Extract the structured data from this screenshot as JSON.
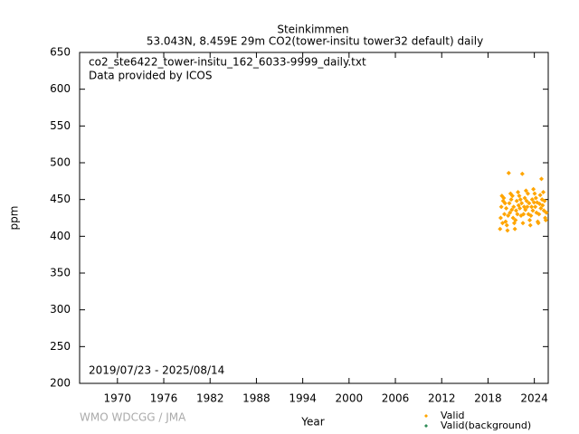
{
  "chart_data": {
    "type": "scatter",
    "title": "Steinkimmen",
    "subtitle": "53.043N, 8.459E 29m    CO2(tower-insitu tower32 default) daily",
    "annotations": [
      "co2_ste6422_tower-insitu_162_6033-9999_daily.txt",
      "Data provided by ICOS",
      "2019/07/23 - 2025/08/14"
    ],
    "credit": "WMO WDCGG / JMA",
    "x_label": "Year",
    "y_label": "ppm",
    "xlim": [
      1965.1,
      2025.8
    ],
    "ylim": [
      200,
      650
    ],
    "xticks": [
      1970,
      1976,
      1982,
      1988,
      1994,
      2000,
      2006,
      2012,
      2018,
      2024
    ],
    "yticks": [
      200,
      250,
      300,
      350,
      400,
      450,
      500,
      550,
      600,
      650
    ],
    "series": [
      {
        "name": "Valid",
        "color": "#ffa500",
        "x": [
          2019.56,
          2019.64,
          2019.72,
          2019.8,
          2019.88,
          2019.96,
          2020.04,
          2020.12,
          2020.2,
          2020.28,
          2020.36,
          2020.44,
          2020.52,
          2020.6,
          2020.68,
          2020.76,
          2020.84,
          2020.92,
          2021.0,
          2021.08,
          2021.16,
          2021.24,
          2021.32,
          2021.4,
          2021.48,
          2021.56,
          2021.64,
          2021.72,
          2021.8,
          2021.88,
          2021.96,
          2022.04,
          2022.12,
          2022.2,
          2022.28,
          2022.36,
          2022.44,
          2022.52,
          2022.6,
          2022.68,
          2022.76,
          2022.84,
          2022.92,
          2023.0,
          2023.08,
          2023.16,
          2023.24,
          2023.32,
          2023.4,
          2023.48,
          2023.56,
          2023.64,
          2023.72,
          2023.8,
          2023.88,
          2023.96,
          2024.04,
          2024.12,
          2024.2,
          2024.28,
          2024.36,
          2024.44,
          2024.52,
          2024.6,
          2024.68,
          2024.76,
          2024.84,
          2024.92,
          2025.0,
          2025.08,
          2025.16,
          2025.24,
          2025.32,
          2025.4,
          2025.48,
          2025.56
        ],
        "values": [
          410,
          425,
          440,
          455,
          418,
          448,
          452,
          430,
          445,
          420,
          438,
          415,
          408,
          428,
          486,
          445,
          432,
          458,
          450,
          436,
          455,
          425,
          440,
          418,
          410,
          422,
          435,
          448,
          430,
          460,
          442,
          455,
          438,
          450,
          428,
          445,
          485,
          418,
          430,
          440,
          452,
          436,
          462,
          448,
          440,
          458,
          430,
          445,
          422,
          415,
          428,
          440,
          450,
          435,
          464,
          446,
          458,
          440,
          452,
          432,
          446,
          420,
          418,
          430,
          444,
          456,
          438,
          478,
          450,
          442,
          460,
          435,
          448,
          425,
          422,
          432
        ]
      },
      {
        "name": "Valid(background)",
        "color": "#2e8b57",
        "x": [],
        "values": []
      }
    ]
  }
}
